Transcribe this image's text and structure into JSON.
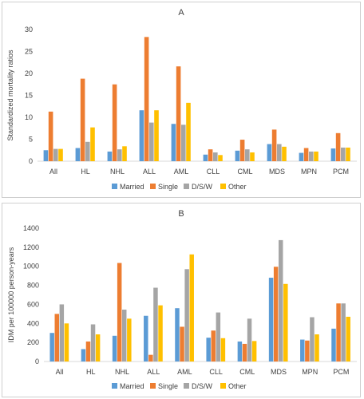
{
  "chart_data": [
    {
      "type": "bar",
      "title": "A",
      "xlabel": "",
      "ylabel": "Standardized mortality ratios",
      "ylim": [
        0,
        30
      ],
      "yticks": [
        0,
        5,
        10,
        15,
        20,
        25,
        30
      ],
      "grid": false,
      "legend_position": "bottom",
      "categories": [
        "All",
        "HL",
        "NHL",
        "ALL",
        "AML",
        "CLL",
        "CML",
        "MDS",
        "MPN",
        "PCM"
      ],
      "series": [
        {
          "name": "Married",
          "color": "#5b9bd5",
          "values": [
            2.5,
            3.0,
            2.2,
            11.6,
            8.5,
            1.5,
            2.4,
            3.9,
            1.9,
            2.9
          ]
        },
        {
          "name": "Single",
          "color": "#ed7d31",
          "values": [
            11.3,
            18.8,
            17.5,
            28.3,
            21.6,
            2.7,
            4.9,
            7.2,
            3.0,
            6.4
          ]
        },
        {
          "name": "D/S/W",
          "color": "#a5a5a5",
          "values": [
            2.8,
            4.4,
            2.7,
            8.8,
            8.3,
            2.0,
            2.7,
            3.9,
            2.2,
            3.1
          ]
        },
        {
          "name": "Other",
          "color": "#ffc000",
          "values": [
            2.8,
            7.7,
            3.4,
            11.6,
            13.3,
            1.4,
            2.0,
            3.3,
            2.2,
            3.1
          ]
        }
      ]
    },
    {
      "type": "bar",
      "title": "B",
      "xlabel": "",
      "ylabel": "IDM per 100000 person-years",
      "ylim": [
        0,
        1400
      ],
      "yticks": [
        0,
        200,
        400,
        600,
        800,
        1000,
        1200,
        1400
      ],
      "grid": false,
      "legend_position": "bottom",
      "categories": [
        "All",
        "HL",
        "NHL",
        "ALL",
        "AML",
        "CLL",
        "CML",
        "MDS",
        "MPN",
        "PCM"
      ],
      "series": [
        {
          "name": "Married",
          "color": "#5b9bd5",
          "values": [
            300,
            130,
            270,
            480,
            560,
            250,
            210,
            880,
            230,
            345
          ]
        },
        {
          "name": "Single",
          "color": "#ed7d31",
          "values": [
            500,
            210,
            1035,
            70,
            365,
            325,
            185,
            995,
            220,
            610
          ]
        },
        {
          "name": "D/S/W",
          "color": "#a5a5a5",
          "values": [
            600,
            390,
            545,
            775,
            970,
            515,
            450,
            1275,
            465,
            610
          ]
        },
        {
          "name": "Other",
          "color": "#ffc000",
          "values": [
            400,
            285,
            450,
            590,
            1125,
            245,
            215,
            815,
            285,
            470
          ]
        }
      ]
    }
  ]
}
